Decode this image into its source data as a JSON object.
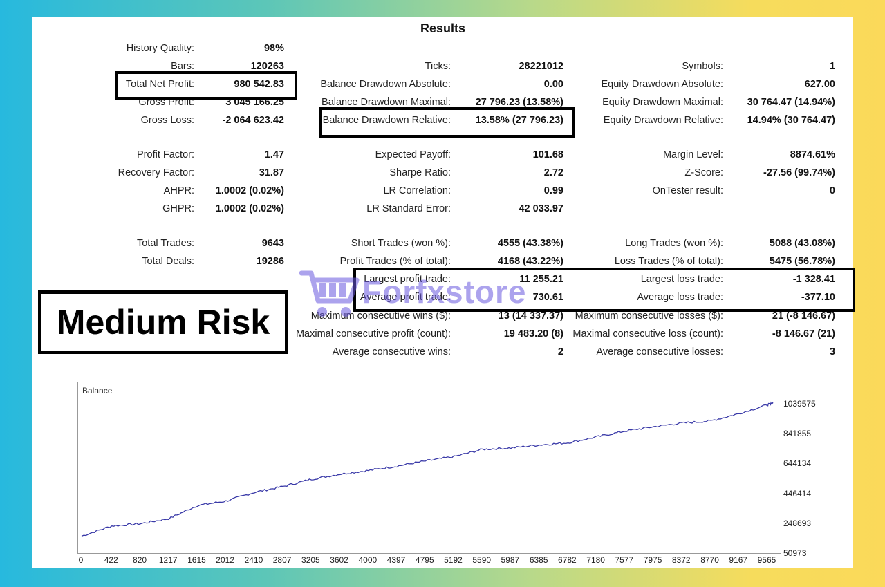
{
  "title": "Results",
  "rows": [
    {
      "c1": {
        "label": "History Quality:",
        "value": "98%"
      }
    },
    {
      "c1": {
        "label": "Bars:",
        "value": "120263"
      },
      "c2": {
        "label": "Ticks:",
        "value": "28221012"
      },
      "c3": {
        "label": "Symbols:",
        "value": "1"
      }
    },
    {
      "c1": {
        "label": "Total Net Profit:",
        "value": "980 542.83"
      },
      "c2": {
        "label": "Balance Drawdown Absolute:",
        "value": "0.00"
      },
      "c3": {
        "label": "Equity Drawdown Absolute:",
        "value": "627.00"
      }
    },
    {
      "c1": {
        "label": "Gross Profit:",
        "value": "3 045 166.25"
      },
      "c2": {
        "label": "Balance Drawdown Maximal:",
        "value": "27 796.23 (13.58%)"
      },
      "c3": {
        "label": "Equity Drawdown Maximal:",
        "value": "30 764.47 (14.94%)"
      }
    },
    {
      "c1": {
        "label": "Gross Loss:",
        "value": "-2 064 623.42"
      },
      "c2": {
        "label": "Balance Drawdown Relative:",
        "value": "13.58% (27 796.23)"
      },
      "c3": {
        "label": "Equity Drawdown Relative:",
        "value": "14.94% (30 764.47)"
      }
    },
    {
      "c1": {
        "label": "Profit Factor:",
        "value": "1.47"
      },
      "c2": {
        "label": "Expected Payoff:",
        "value": "101.68"
      },
      "c3": {
        "label": "Margin Level:",
        "value": "8874.61%"
      }
    },
    {
      "c1": {
        "label": "Recovery Factor:",
        "value": "31.87"
      },
      "c2": {
        "label": "Sharpe Ratio:",
        "value": "2.72"
      },
      "c3": {
        "label": "Z-Score:",
        "value": "-27.56 (99.74%)"
      }
    },
    {
      "c1": {
        "label": "AHPR:",
        "value": "1.0002 (0.02%)"
      },
      "c2": {
        "label": "LR Correlation:",
        "value": "0.99"
      },
      "c3": {
        "label": "OnTester result:",
        "value": "0"
      }
    },
    {
      "c1": {
        "label": "GHPR:",
        "value": "1.0002 (0.02%)"
      },
      "c2": {
        "label": "LR Standard Error:",
        "value": "42 033.97"
      }
    },
    {
      "c1": {
        "label": "Total Trades:",
        "value": "9643"
      },
      "c2": {
        "label": "Short Trades (won %):",
        "value": "4555 (43.38%)"
      },
      "c3": {
        "label": "Long Trades (won %):",
        "value": "5088 (43.08%)"
      }
    },
    {
      "c1": {
        "label": "Total Deals:",
        "value": "19286"
      },
      "c2": {
        "label": "Profit Trades (% of total):",
        "value": "4168 (43.22%)"
      },
      "c3": {
        "label": "Loss Trades (% of total):",
        "value": "5475 (56.78%)"
      }
    },
    {
      "c2": {
        "label": "Largest profit trade:",
        "value": "11 255.21"
      },
      "c3": {
        "label": "Largest loss trade:",
        "value": "-1 328.41"
      }
    },
    {
      "c2": {
        "label": "Average profit trade:",
        "value": "730.61"
      },
      "c3": {
        "label": "Average loss trade:",
        "value": "-377.10"
      }
    },
    {
      "c2": {
        "label": "Maximum consecutive wins ($):",
        "value": "13 (14 337.37)"
      },
      "c3": {
        "label": "Maximum consecutive losses ($):",
        "value": "21 (-8 146.67)"
      }
    },
    {
      "c2": {
        "label": "Maximal consecutive profit (count):",
        "value": "19 483.20 (8)"
      },
      "c3": {
        "label": "Maximal consecutive loss (count):",
        "value": "-8 146.67 (21)"
      }
    },
    {
      "c2": {
        "label": "Average consecutive wins:",
        "value": "2"
      },
      "c3": {
        "label": "Average consecutive losses:",
        "value": "3"
      }
    }
  ],
  "risk_label": "Medium Risk",
  "watermark": {
    "text": "Forfxstore",
    "icon": "shopping-cart-icon",
    "color": "#6a58e0"
  },
  "chart_data": {
    "type": "line",
    "title": "Balance",
    "x": [
      0,
      422,
      820,
      1217,
      1615,
      2012,
      2410,
      2807,
      3205,
      3602,
      4000,
      4397,
      4795,
      5192,
      5590,
      5987,
      6385,
      6782,
      7180,
      7577,
      7975,
      8372,
      8770,
      9167,
      9565,
      9643
    ],
    "y": [
      120000,
      190000,
      205000,
      240000,
      330000,
      360000,
      420000,
      460000,
      510000,
      545000,
      570000,
      600000,
      635000,
      665000,
      715000,
      725000,
      745000,
      760000,
      800000,
      840000,
      870000,
      895000,
      910000,
      960000,
      1020000,
      1035000
    ],
    "x_ticks": [
      "0",
      "422",
      "820",
      "1217",
      "1615",
      "2012",
      "2410",
      "2807",
      "3205",
      "3602",
      "4000",
      "4397",
      "4795",
      "5192",
      "5590",
      "5987",
      "6385",
      "6782",
      "7180",
      "7577",
      "7975",
      "8372",
      "8770",
      "9167",
      "9565"
    ],
    "y_ticks": [
      "1039575",
      "841855",
      "644134",
      "446414",
      "248693",
      "50973"
    ],
    "ylim": [
      50973,
      1103000
    ],
    "xlim": [
      0,
      9700
    ],
    "line_color": "#3a3aa8",
    "grid": false
  }
}
